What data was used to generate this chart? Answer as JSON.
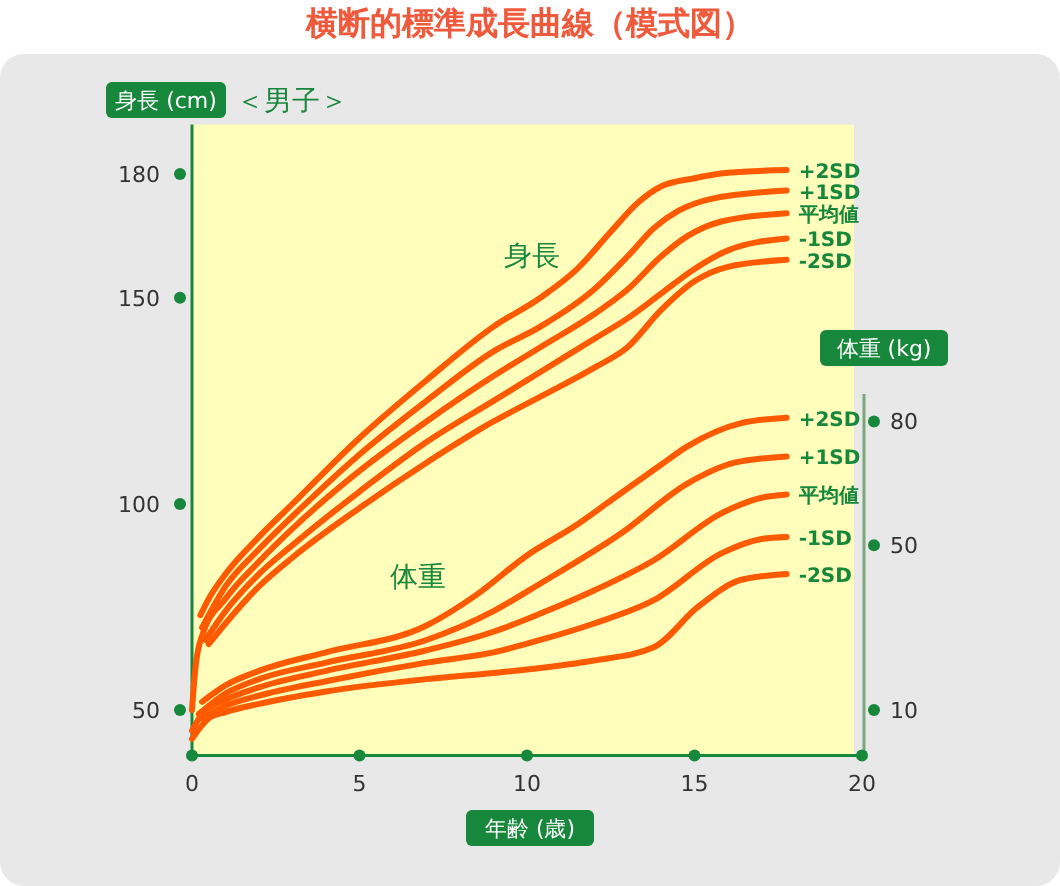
{
  "chart_data": {
    "type": "line",
    "title": "横断的標準成長曲線（模式図）",
    "subtitle": "＜男子＞",
    "xlabel": "年齢 (歳)",
    "ylabel": "身長 (cm)",
    "y2label": "体重 (kg)",
    "annotations": [
      "身長",
      "体重"
    ],
    "xlim": [
      0,
      20
    ],
    "xticks": [
      0,
      5,
      10,
      15,
      20
    ],
    "ylim": [
      39,
      192
    ],
    "yticks": [
      50,
      100,
      150,
      180
    ],
    "y2lim": [
      -1,
      152
    ],
    "y2ticks": [
      10,
      50,
      80
    ],
    "grid": false,
    "legend": false,
    "marker": "none",
    "line_style": "solid",
    "series": [
      {
        "name": "+2SD",
        "color": "#ff5a00",
        "x": [
          0.25,
          0.5,
          1,
          2,
          3,
          5,
          7,
          9,
          10.4,
          11.5,
          12.5,
          13.3,
          14,
          15,
          16,
          17.75
        ],
        "values": [
          73,
          77,
          83,
          92,
          100,
          116,
          130,
          143,
          150,
          157,
          166,
          173,
          177,
          179,
          180.3,
          181
        ]
      },
      {
        "name": "+1SD",
        "color": "#ff5a00",
        "x": [
          0.3,
          1,
          2,
          3,
          5,
          7,
          9,
          10.4,
          12,
          13,
          13.8,
          14.5,
          15.5,
          17.75
        ],
        "values": [
          70,
          80,
          89,
          97,
          112,
          125,
          137,
          143,
          152,
          160,
          167,
          171,
          174,
          176
        ]
      },
      {
        "name": "平均値",
        "color": "#ff5a00",
        "x": [
          0,
          0.1,
          0.3,
          1,
          2,
          3,
          5,
          7,
          9,
          10.4,
          12,
          13,
          14,
          14.8,
          15.8,
          17.75
        ],
        "values": [
          50,
          60,
          68,
          77,
          86,
          94,
          108,
          120,
          131,
          138,
          146,
          152,
          160,
          165,
          168.5,
          170.5
        ]
      },
      {
        "name": "-1SD",
        "color": "#ff5a00",
        "x": [
          0.4,
          1,
          2,
          3,
          5,
          7,
          9,
          10.4,
          12,
          13,
          14,
          15,
          16,
          17.75
        ],
        "values": [
          67,
          74,
          83,
          90,
          103,
          115,
          125,
          132,
          140,
          145,
          151,
          157,
          161.5,
          164.4
        ]
      },
      {
        "name": "-2SD",
        "color": "#ff5a00",
        "x": [
          0.5,
          1,
          2,
          3,
          5,
          7,
          9,
          10.4,
          12,
          13,
          14,
          15,
          16,
          17.75
        ],
        "values": [
          66,
          71,
          80,
          87,
          99,
          110,
          120,
          126,
          133,
          138,
          147,
          154,
          157.5,
          159.2
        ]
      },
      {
        "name": "+2SD",
        "color": "#ff5a00",
        "axis": "y2",
        "x": [
          0.3,
          1,
          2,
          4,
          7,
          8.5,
          10,
          11.5,
          12.8,
          14,
          14.8,
          16.4,
          17.75
        ],
        "values": [
          12,
          16,
          19.5,
          24,
          30.5,
          38,
          47.5,
          55,
          62.6,
          69.5,
          74,
          79.6,
          80.9
        ]
      },
      {
        "name": "+1SD",
        "color": "#ff5a00",
        "axis": "y2",
        "x": [
          0.2,
          1,
          2,
          4,
          7,
          9,
          10.4,
          12.8,
          14.8,
          16.2,
          17.75
        ],
        "values": [
          9,
          14,
          17.5,
          21.5,
          27,
          34,
          40.7,
          52.8,
          65,
          70,
          71.5
        ]
      },
      {
        "name": "平均値",
        "color": "#ff5a00",
        "axis": "y2",
        "x": [
          0,
          0.3,
          1,
          2,
          4,
          7,
          9,
          10.4,
          12,
          13.8,
          15.8,
          17,
          17.75
        ],
        "values": [
          5,
          9,
          12.5,
          15.5,
          19.5,
          24.5,
          29,
          33.4,
          39,
          46.4,
          57.7,
          61.5,
          62.3
        ]
      },
      {
        "name": "-1SD",
        "color": "#ff5a00",
        "axis": "y2",
        "x": [
          0.3,
          1,
          2,
          4,
          7,
          9,
          10.4,
          12,
          13.8,
          15.8,
          17,
          17.75
        ],
        "values": [
          8,
          11,
          13.5,
          17,
          21.5,
          24,
          27,
          31,
          36.7,
          48,
          51.5,
          52
        ]
      },
      {
        "name": "-2SD",
        "color": "#ff5a00",
        "axis": "y2",
        "x": [
          0,
          0.5,
          1,
          2,
          4,
          7,
          9,
          10.4,
          12,
          13.8,
          15.1,
          16.4,
          17.75
        ],
        "values": [
          3,
          8,
          9.5,
          11.5,
          14.5,
          17.5,
          19,
          20.2,
          22,
          25.3,
          35,
          41.6,
          43
        ]
      }
    ]
  }
}
